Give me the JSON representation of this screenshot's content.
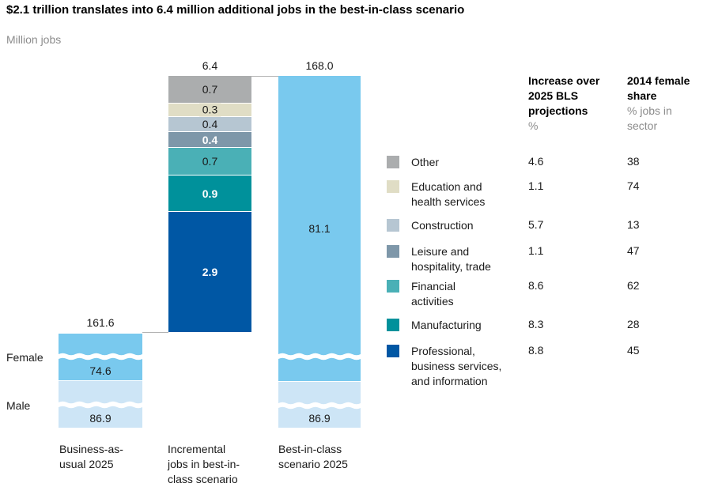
{
  "title": "$2.1 trillion translates into 6.4 million additional jobs in the best-in-class scenario",
  "units_label": "Million jobs",
  "colors": {
    "female": "#79c9ee",
    "male": "#cde5f6",
    "other": "#abadae",
    "education": "#e0ddc5",
    "construction": "#b6c6d2",
    "leisure": "#7e97a9",
    "financial": "#4ab0b6",
    "manufacturing": "#00919b",
    "professional": "#0057a4",
    "connector": "#b3b3b3",
    "muted_text": "#8c8c8c",
    "text": "#1a1a1a"
  },
  "chart_data": {
    "type": "bar",
    "subtype": "stacked-waterfall-with-broken-axis",
    "title": "$2.1 trillion translates into 6.4 million additional jobs in the best-in-class scenario",
    "ylabel": "Million jobs",
    "legend_position": "right",
    "side_labels": [
      {
        "text": "Female"
      },
      {
        "text": "Male"
      }
    ],
    "bars": [
      {
        "name": "business-as-usual-2025",
        "axis_label_lines": [
          "Business-as-",
          "usual 2025"
        ],
        "total": 161.6,
        "segments": [
          {
            "label": "Female",
            "value": 74.6,
            "color_key": "female",
            "broken": true
          },
          {
            "label": "Male",
            "value": 86.9,
            "color_key": "male",
            "broken": true
          }
        ]
      },
      {
        "name": "incremental-jobs-in-best-in-class-scenario",
        "axis_label_lines": [
          "Incremental",
          "jobs in best-in-",
          "class scenario"
        ],
        "total": 6.4,
        "segments": [
          {
            "label": "Other",
            "value": 0.7,
            "color_key": "other"
          },
          {
            "label": "Education and health services",
            "value": 0.3,
            "color_key": "education"
          },
          {
            "label": "Construction",
            "value": 0.4,
            "color_key": "construction"
          },
          {
            "label": "Leisure and hospitality, trade",
            "value": 0.4,
            "color_key": "leisure"
          },
          {
            "label": "Financial activities",
            "value": 0.7,
            "color_key": "financial"
          },
          {
            "label": "Manufacturing",
            "value": 0.9,
            "color_key": "manufacturing"
          },
          {
            "label": "Professional, business services, and information",
            "value": 2.9,
            "color_key": "professional"
          }
        ]
      },
      {
        "name": "best-in-class-scenario-2025",
        "axis_label_lines": [
          "Best-in-class",
          "scenario 2025"
        ],
        "total": 168.0,
        "segments": [
          {
            "label": "Female",
            "value": 81.1,
            "color_key": "female",
            "broken": true
          },
          {
            "label": "Male",
            "value": 86.9,
            "color_key": "male",
            "broken": true
          }
        ]
      }
    ]
  },
  "legend": {
    "columns": [
      {
        "title": "Increase over\n2025 BLS\nprojections",
        "subtitle": "%"
      },
      {
        "title": "2014 female\nshare",
        "subtitle": "% jobs in\nsector"
      }
    ],
    "rows": [
      {
        "label_lines": [
          "Other"
        ],
        "color_key": "other",
        "increase": 4.6,
        "female_share": 38
      },
      {
        "label_lines": [
          "Education and",
          "health services"
        ],
        "color_key": "education",
        "increase": 1.1,
        "female_share": 74
      },
      {
        "label_lines": [
          "Construction"
        ],
        "color_key": "construction",
        "increase": 5.7,
        "female_share": 13
      },
      {
        "label_lines": [
          "Leisure and",
          "hospitality, trade"
        ],
        "color_key": "leisure",
        "increase": 1.1,
        "female_share": 47
      },
      {
        "label_lines": [
          "Financial",
          "activities"
        ],
        "color_key": "financial",
        "increase": 8.6,
        "female_share": 62
      },
      {
        "label_lines": [
          "Manufacturing"
        ],
        "color_key": "manufacturing",
        "increase": 8.3,
        "female_share": 28
      },
      {
        "label_lines": [
          "Professional,",
          "business services,",
          "and information"
        ],
        "color_key": "professional",
        "increase": 8.8,
        "female_share": 45
      }
    ]
  }
}
